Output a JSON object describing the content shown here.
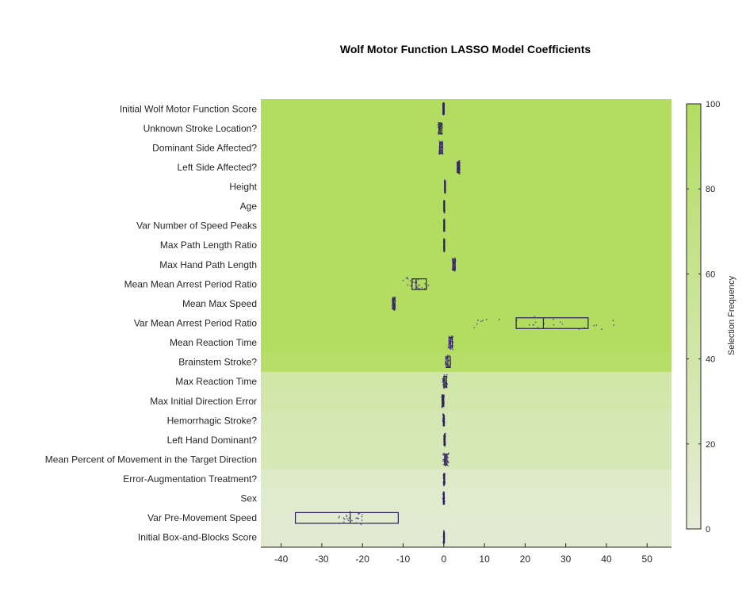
{
  "chart_data": {
    "type": "heatmap",
    "title": "Wolf Motor Function LASSO Model Coefficients",
    "xlim": [
      -45,
      56
    ],
    "xticks": [
      -40,
      -30,
      -20,
      -10,
      0,
      10,
      20,
      30,
      40,
      50
    ],
    "colorbar": {
      "label": "Selection Frequency",
      "range": [
        0,
        100
      ],
      "ticks": [
        0,
        20,
        40,
        60,
        80,
        100
      ],
      "low_color": "#e6ecd9",
      "high_color": "#b2dd60"
    },
    "box_color": "#2b1d57",
    "dot_color": "#4b3b88",
    "rows": [
      {
        "label": "Initial Wolf Motor Function Score",
        "selection_frequency": 100,
        "coef_box": [
          -0.2,
          -0.1,
          0.1
        ],
        "spread": 0.1
      },
      {
        "label": "Unknown Stroke Location?",
        "selection_frequency": 100,
        "coef_box": [
          -1.2,
          -0.9,
          -0.5
        ],
        "spread": 0.6
      },
      {
        "label": "Dominant Side Affected?",
        "selection_frequency": 100,
        "coef_box": [
          -1.0,
          -0.7,
          -0.3
        ],
        "spread": 0.5
      },
      {
        "label": "Left Side Affected?",
        "selection_frequency": 100,
        "coef_box": [
          3.3,
          3.6,
          3.9
        ],
        "spread": 0.3
      },
      {
        "label": "Height",
        "selection_frequency": 100,
        "coef_box": [
          0.2,
          0.3,
          0.4
        ],
        "spread": 0.1
      },
      {
        "label": "Age",
        "selection_frequency": 100,
        "coef_box": [
          0.0,
          0.1,
          0.2
        ],
        "spread": 0.1
      },
      {
        "label": "Var Number of Speed Peaks",
        "selection_frequency": 100,
        "coef_box": [
          0.0,
          0.1,
          0.2
        ],
        "spread": 0.1
      },
      {
        "label": "Max Path Length Ratio",
        "selection_frequency": 100,
        "coef_box": [
          0.0,
          0.1,
          0.2
        ],
        "spread": 0.1
      },
      {
        "label": "Max Hand Path Length",
        "selection_frequency": 100,
        "coef_box": [
          2.2,
          2.5,
          2.8
        ],
        "spread": 0.4
      },
      {
        "label": "Mean Mean Arrest Period Ratio",
        "selection_frequency": 100,
        "coef_box": [
          -7.8,
          -6.8,
          -4.3
        ],
        "spread": 3.5
      },
      {
        "label": "Mean Max Speed",
        "selection_frequency": 100,
        "coef_box": [
          -12.6,
          -12.3,
          -12.0
        ],
        "spread": 0.4
      },
      {
        "label": "Var Mean Arrest Period Ratio",
        "selection_frequency": 100,
        "coef_box": [
          17.8,
          24.5,
          35.5
        ],
        "spread": 18
      },
      {
        "label": "Mean Reaction Time",
        "selection_frequency": 100,
        "coef_box": [
          1.3,
          1.7,
          2.1
        ],
        "spread": 0.6
      },
      {
        "label": "Brainstem Stroke?",
        "selection_frequency": 93,
        "coef_box": [
          0.6,
          1.0,
          1.6
        ],
        "spread": 0.7
      },
      {
        "label": "Max Reaction Time",
        "selection_frequency": 40,
        "coef_box": [
          0.0,
          0.3,
          0.7
        ],
        "spread": 0.6
      },
      {
        "label": "Max Initial Direction Error",
        "selection_frequency": 37,
        "coef_box": [
          -0.4,
          -0.2,
          0.0
        ],
        "spread": 0.3
      },
      {
        "label": "Hemorrhagic Stroke?",
        "selection_frequency": 32,
        "coef_box": [
          -0.1,
          0.0,
          0.1
        ],
        "spread": 0.2
      },
      {
        "label": "Left Hand Dominant?",
        "selection_frequency": 30,
        "coef_box": [
          0.1,
          0.2,
          0.3
        ],
        "spread": 0.2
      },
      {
        "label": "Mean Percent of Movement in the Target Direction",
        "selection_frequency": 28,
        "coef_box": [
          0.2,
          0.5,
          0.8
        ],
        "spread": 0.8
      },
      {
        "label": "Error-Augmentation Treatment?",
        "selection_frequency": 13,
        "coef_box": [
          0.0,
          0.1,
          0.2
        ],
        "spread": 0.2
      },
      {
        "label": "Sex",
        "selection_frequency": 11,
        "coef_box": [
          -0.1,
          0.0,
          0.1
        ],
        "spread": 0.2
      },
      {
        "label": "Var Pre-Movement Speed",
        "selection_frequency": 8,
        "coef_box": [
          -36.5,
          -23.0,
          -11.2
        ],
        "spread": 3
      },
      {
        "label": "Initial Box-and-Blocks Score",
        "selection_frequency": 7,
        "coef_box": [
          0.0,
          0.0,
          0.1
        ],
        "spread": 0.1
      }
    ]
  }
}
